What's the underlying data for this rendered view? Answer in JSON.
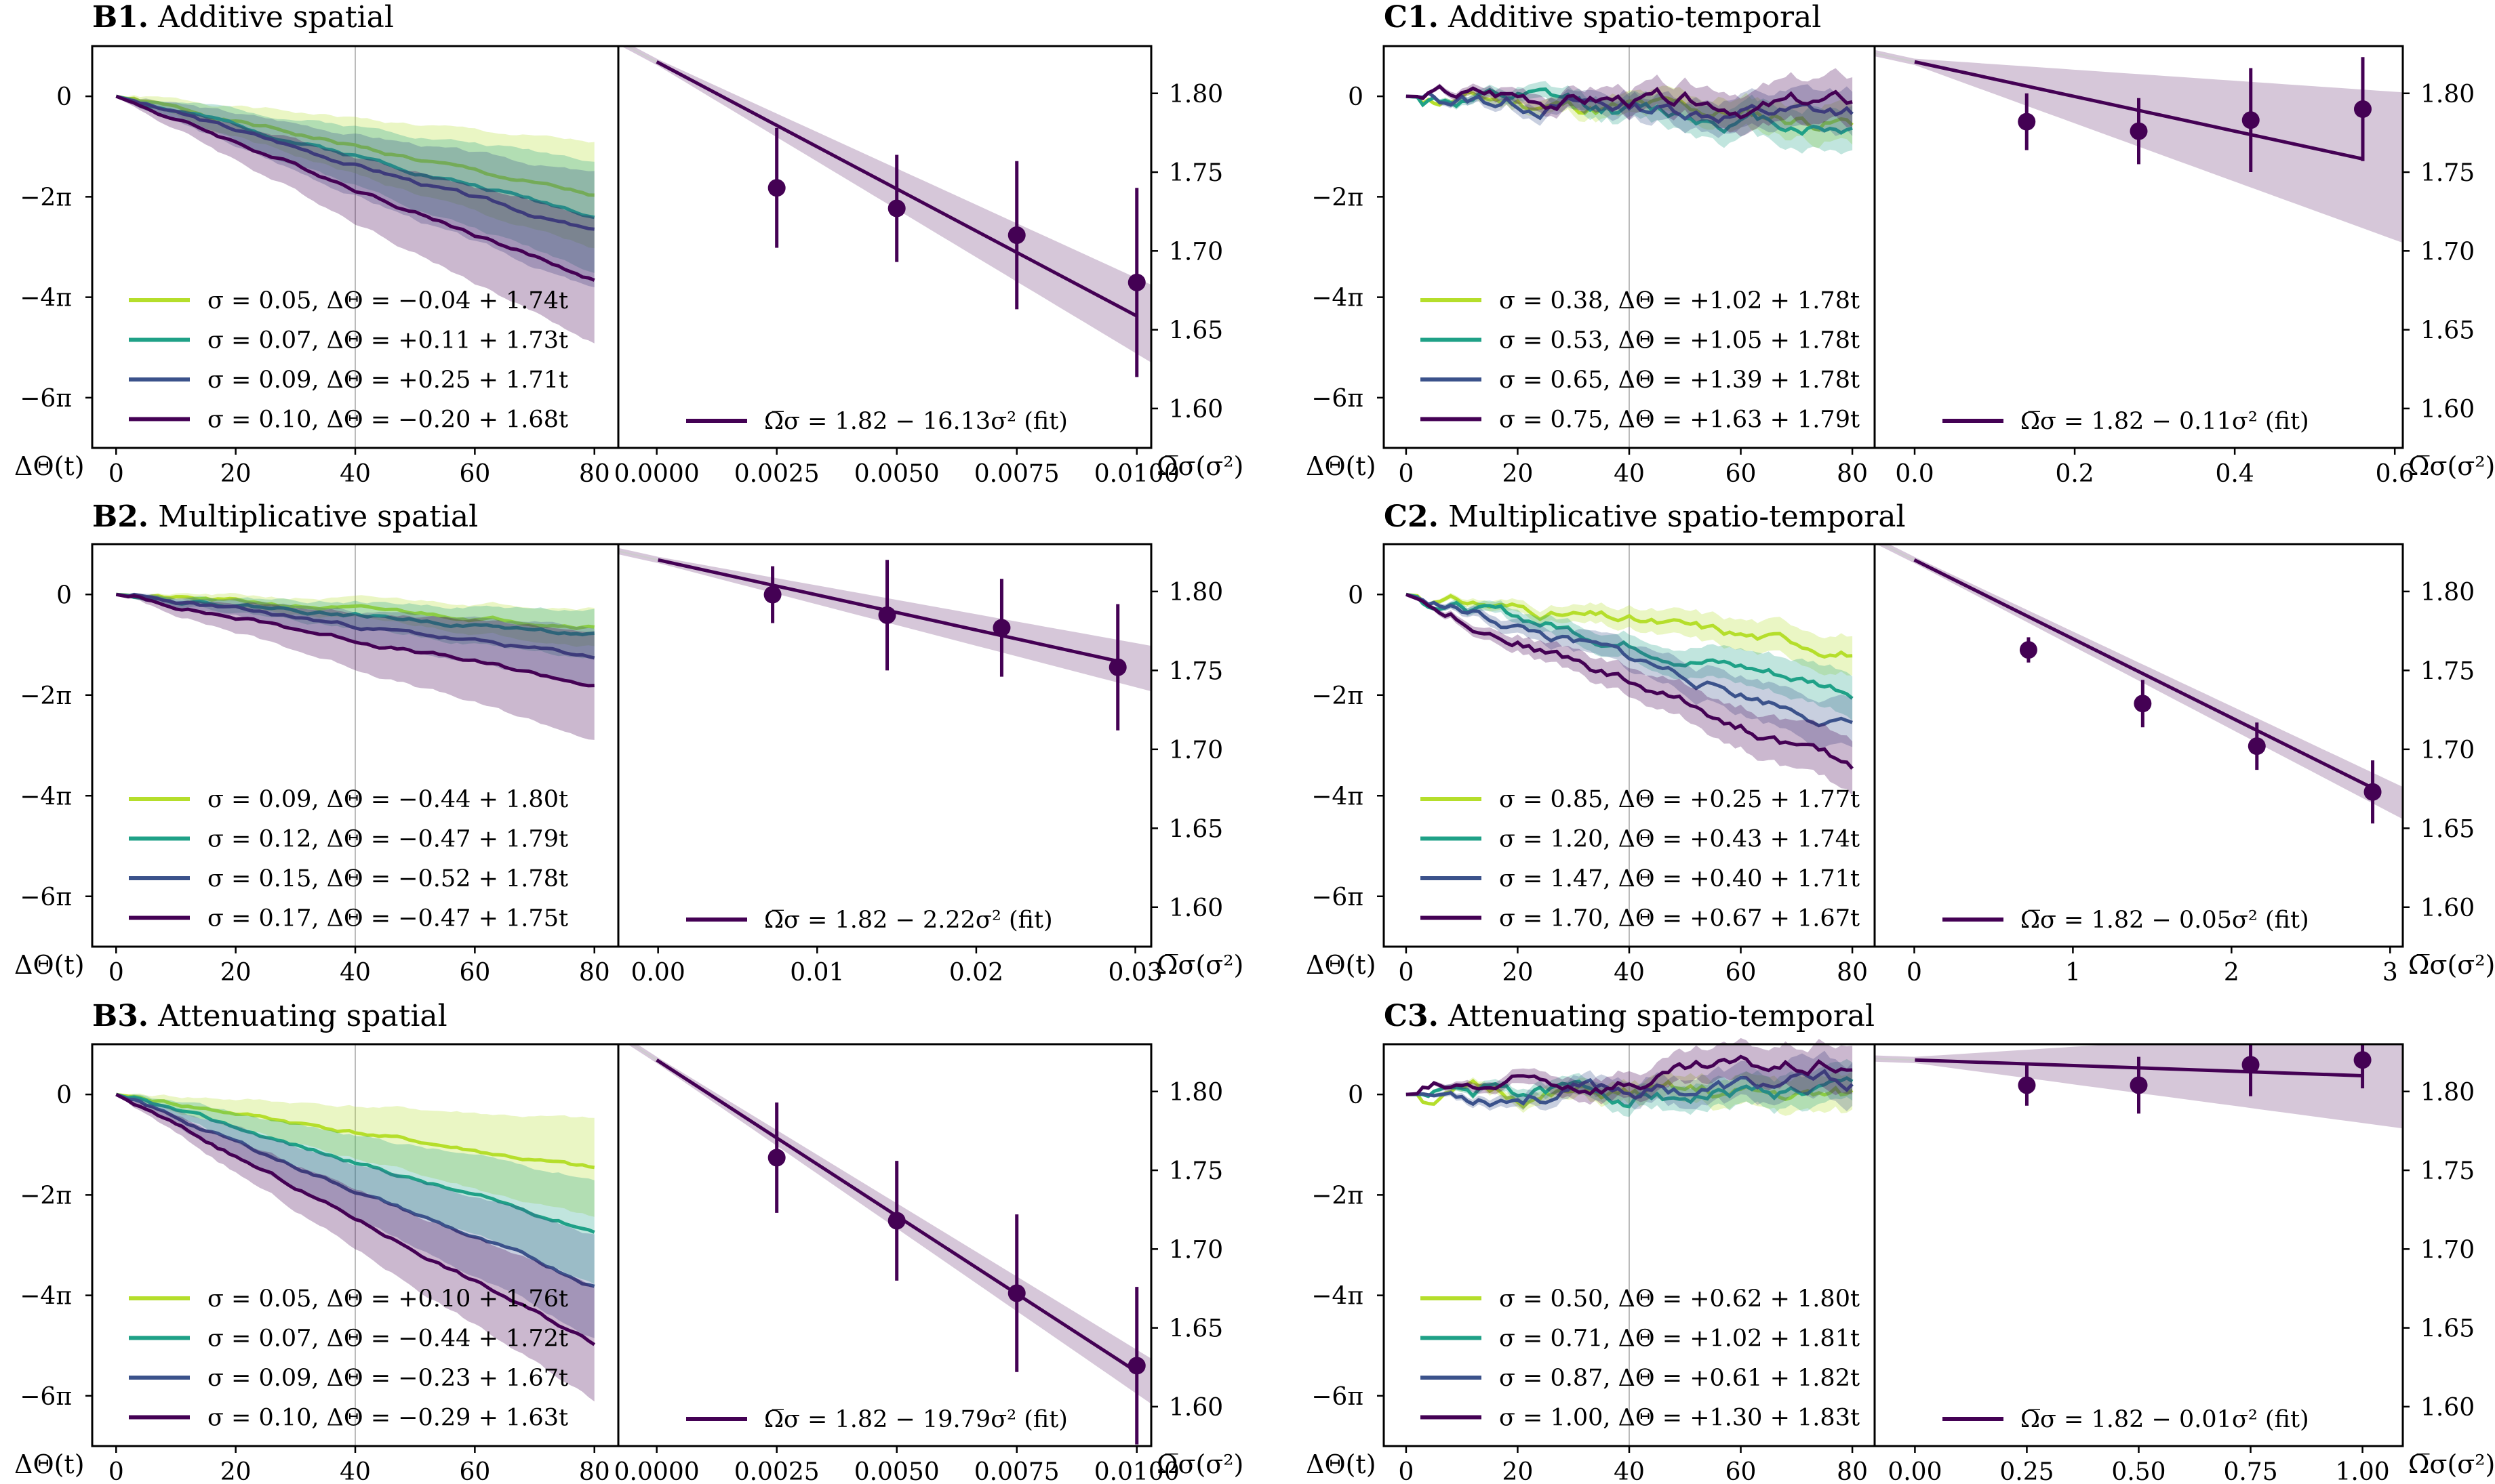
{
  "colors": {
    "viridis": [
      "#b5de2b",
      "#1fa187",
      "#3b528b",
      "#440154"
    ],
    "fit": "#440154",
    "vline": "#bbbbbb"
  },
  "labels": {
    "phase_axis": "ΔΘ(t)",
    "freq_axis": "Ω̅σ(σ²)"
  },
  "chart_data": [
    {
      "id": "B1",
      "title_bold": "B1.",
      "title_text": "Additive spatial",
      "left": {
        "type": "line",
        "xlim": [
          -4,
          84
        ],
        "ylim_pi": [
          -7,
          1
        ],
        "x_ticks": [
          0,
          20,
          40,
          60,
          80
        ],
        "x_tick_labels": [
          "0",
          "20",
          "40",
          "60",
          "80"
        ],
        "y_ticks_pi": [
          0,
          -2,
          -4,
          -6
        ],
        "y_tick_labels": [
          "0",
          "−2π",
          "−4π",
          "−6π"
        ],
        "vline_x": 40,
        "band_growth": 0.035,
        "series": [
          {
            "sigma": "0.05",
            "intercept": "−0.04",
            "slope": "1.74",
            "legend": "σ = 0.05, ΔΘ = −0.04 + 1.74t",
            "end_pi": -2.0,
            "band_pi": 0.9
          },
          {
            "sigma": "0.07",
            "intercept": "+0.11",
            "slope": "1.73",
            "legend": "σ = 0.07, ΔΘ = +0.11 + 1.73t",
            "end_pi": -2.35,
            "band_pi": 0.95
          },
          {
            "sigma": "0.09",
            "intercept": "+0.25",
            "slope": "1.71",
            "legend": "σ = 0.09, ΔΘ = +0.25 + 1.71t",
            "end_pi": -2.7,
            "band_pi": 1.0
          },
          {
            "sigma": "0.10",
            "intercept": "−0.20",
            "slope": "1.68",
            "legend": "σ = 0.10, ΔΘ = −0.20 + 1.68t",
            "end_pi": -3.65,
            "band_pi": 1.1
          }
        ]
      },
      "right": {
        "type": "scatter",
        "xlim": [
          -0.0008,
          0.0103
        ],
        "ylim": [
          1.575,
          1.83
        ],
        "x_ticks": [
          0,
          0.0025,
          0.005,
          0.0075,
          0.01
        ],
        "x_tick_labels": [
          "0.0000",
          "0.0025",
          "0.0050",
          "0.0075",
          "0.0100"
        ],
        "y_ticks": [
          1.6,
          1.65,
          1.7,
          1.75,
          1.8
        ],
        "y_tick_labels": [
          "1.60",
          "1.65",
          "1.70",
          "1.75",
          "1.80"
        ],
        "fit": {
          "a": 1.82,
          "b": -16.13,
          "label": "Ω̅σ = 1.82 − 16.13σ² (fit)",
          "band_end": 0.022
        },
        "points": [
          {
            "x": 0.0025,
            "y": 1.74,
            "err": 0.038
          },
          {
            "x": 0.005,
            "y": 1.727,
            "err": 0.034
          },
          {
            "x": 0.0075,
            "y": 1.71,
            "err": 0.047
          },
          {
            "x": 0.01,
            "y": 1.68,
            "err": 0.06
          }
        ]
      }
    },
    {
      "id": "C1",
      "title_bold": "C1.",
      "title_text": "Additive spatio-temporal",
      "left": {
        "type": "line",
        "xlim": [
          -4,
          84
        ],
        "ylim_pi": [
          -7,
          1
        ],
        "x_ticks": [
          0,
          20,
          40,
          60,
          80
        ],
        "x_tick_labels": [
          "0",
          "20",
          "40",
          "60",
          "80"
        ],
        "y_ticks_pi": [
          0,
          -2,
          -4,
          -6
        ],
        "y_tick_labels": [
          "0",
          "−2π",
          "−4π",
          "−6π"
        ],
        "vline_x": 40,
        "band_growth": 0.02,
        "wiggle": 0.12,
        "series": [
          {
            "sigma": "0.38",
            "intercept": "+1.02",
            "slope": "1.78",
            "legend": "σ = 0.38, ΔΘ = +1.02 + 1.78t",
            "end_pi": -0.5,
            "band_pi": 0.3
          },
          {
            "sigma": "0.53",
            "intercept": "+1.05",
            "slope": "1.78",
            "legend": "σ = 0.53, ΔΘ = +1.05 + 1.78t",
            "end_pi": -0.6,
            "band_pi": 0.35
          },
          {
            "sigma": "0.65",
            "intercept": "+1.39",
            "slope": "1.78",
            "legend": "σ = 0.65, ΔΘ = +1.39 + 1.78t",
            "end_pi": -0.4,
            "band_pi": 0.35
          },
          {
            "sigma": "0.75",
            "intercept": "+1.63",
            "slope": "1.79",
            "legend": "σ = 0.75, ΔΘ = +1.63 + 1.79t",
            "end_pi": -0.2,
            "band_pi": 0.4
          }
        ]
      },
      "right": {
        "type": "scatter",
        "xlim": [
          -0.05,
          0.61
        ],
        "ylim": [
          1.575,
          1.83
        ],
        "x_ticks": [
          0,
          0.2,
          0.4,
          0.6
        ],
        "x_tick_labels": [
          "0.0",
          "0.2",
          "0.4",
          "0.6"
        ],
        "y_ticks": [
          1.6,
          1.65,
          1.7,
          1.75,
          1.8
        ],
        "y_tick_labels": [
          "1.60",
          "1.65",
          "1.70",
          "1.75",
          "1.80"
        ],
        "fit": {
          "a": 1.82,
          "b": -0.11,
          "label": "Ω̅σ = 1.82 − 0.11σ² (fit)",
          "band_end": 0.045
        },
        "points": [
          {
            "x": 0.14,
            "y": 1.782,
            "err": 0.018
          },
          {
            "x": 0.28,
            "y": 1.776,
            "err": 0.021
          },
          {
            "x": 0.42,
            "y": 1.783,
            "err": 0.033
          },
          {
            "x": 0.56,
            "y": 1.79,
            "err": 0.033
          }
        ]
      }
    },
    {
      "id": "B2",
      "title_bold": "B2.",
      "title_text": "Multiplicative spatial",
      "left": {
        "type": "line",
        "xlim": [
          -4,
          84
        ],
        "ylim_pi": [
          -7,
          1
        ],
        "x_ticks": [
          0,
          20,
          40,
          60,
          80
        ],
        "x_tick_labels": [
          "0",
          "20",
          "40",
          "60",
          "80"
        ],
        "y_ticks_pi": [
          0,
          -2,
          -4,
          -6
        ],
        "y_tick_labels": [
          "0",
          "−2π",
          "−4π",
          "−6π"
        ],
        "vline_x": 40,
        "band_growth": 0.018,
        "series": [
          {
            "sigma": "0.09",
            "intercept": "−0.44",
            "slope": "1.80",
            "legend": "σ = 0.09, ΔΘ = −0.44 + 1.80t",
            "end_pi": -0.6,
            "band_pi": 0.3
          },
          {
            "sigma": "0.12",
            "intercept": "−0.47",
            "slope": "1.79",
            "legend": "σ = 0.12, ΔΘ = −0.47 + 1.79t",
            "end_pi": -0.8,
            "band_pi": 0.4
          },
          {
            "sigma": "0.15",
            "intercept": "−0.52",
            "slope": "1.78",
            "legend": "σ = 0.15, ΔΘ = −0.52 + 1.78t",
            "end_pi": -1.25,
            "band_pi": 0.5
          },
          {
            "sigma": "0.17",
            "intercept": "−0.47",
            "slope": "1.75",
            "legend": "σ = 0.17, ΔΘ = −0.47 + 1.75t",
            "end_pi": -1.8,
            "band_pi": 1.0
          }
        ]
      },
      "right": {
        "type": "scatter",
        "xlim": [
          -0.0025,
          0.031
        ],
        "ylim": [
          1.575,
          1.83
        ],
        "x_ticks": [
          0,
          0.01,
          0.02,
          0.03
        ],
        "x_tick_labels": [
          "0.00",
          "0.01",
          "0.02",
          "0.03"
        ],
        "y_ticks": [
          1.6,
          1.65,
          1.7,
          1.75,
          1.8
        ],
        "y_tick_labels": [
          "1.60",
          "1.65",
          "1.70",
          "1.75",
          "1.80"
        ],
        "fit": {
          "a": 1.82,
          "b": -2.22,
          "label": "Ω̅σ = 1.82 − 2.22σ² (fit)",
          "band_end": 0.012
        },
        "points": [
          {
            "x": 0.0072,
            "y": 1.798,
            "err": 0.018
          },
          {
            "x": 0.0144,
            "y": 1.785,
            "err": 0.035
          },
          {
            "x": 0.0216,
            "y": 1.777,
            "err": 0.031
          },
          {
            "x": 0.0289,
            "y": 1.752,
            "err": 0.04
          }
        ]
      }
    },
    {
      "id": "C2",
      "title_bold": "C2.",
      "title_text": "Multiplicative spatio-temporal",
      "left": {
        "type": "line",
        "xlim": [
          -4,
          84
        ],
        "ylim_pi": [
          -7,
          1
        ],
        "x_ticks": [
          0,
          20,
          40,
          60,
          80
        ],
        "x_tick_labels": [
          "0",
          "20",
          "40",
          "60",
          "80"
        ],
        "y_ticks_pi": [
          0,
          -2,
          -4,
          -6
        ],
        "y_tick_labels": [
          "0",
          "−2π",
          "−4π",
          "−6π"
        ],
        "vline_x": 40,
        "band_growth": 0.02,
        "wiggle": 0.08,
        "series": [
          {
            "sigma": "0.85",
            "intercept": "+0.25",
            "slope": "1.77",
            "legend": "σ = 0.85, ΔΘ = +0.25 + 1.77t",
            "end_pi": -1.1,
            "band_pi": 0.3
          },
          {
            "sigma": "1.20",
            "intercept": "+0.43",
            "slope": "1.74",
            "legend": "σ = 1.20, ΔΘ = +0.43 + 1.74t",
            "end_pi": -1.9,
            "band_pi": 0.35
          },
          {
            "sigma": "1.47",
            "intercept": "+0.40",
            "slope": "1.71",
            "legend": "σ = 1.47, ΔΘ = +0.40 + 1.71t",
            "end_pi": -2.6,
            "band_pi": 0.4
          },
          {
            "sigma": "1.70",
            "intercept": "+0.67",
            "slope": "1.67",
            "legend": "σ = 1.70, ΔΘ = +0.67 + 1.67t",
            "end_pi": -3.45,
            "band_pi": 0.45
          }
        ]
      },
      "right": {
        "type": "scatter",
        "xlim": [
          -0.25,
          3.08
        ],
        "ylim": [
          1.575,
          1.83
        ],
        "x_ticks": [
          0,
          1,
          2,
          3
        ],
        "x_tick_labels": [
          "0",
          "1",
          "2",
          "3"
        ],
        "y_ticks": [
          1.6,
          1.65,
          1.7,
          1.75,
          1.8
        ],
        "y_tick_labels": [
          "1.60",
          "1.65",
          "1.70",
          "1.75",
          "1.80"
        ],
        "fit": {
          "a": 1.82,
          "b": -0.05,
          "label": "Ω̅σ = 1.82 − 0.05σ² (fit)",
          "band_end": 0.008
        },
        "points": [
          {
            "x": 0.72,
            "y": 1.763,
            "err": 0.008
          },
          {
            "x": 1.44,
            "y": 1.729,
            "err": 0.015
          },
          {
            "x": 2.16,
            "y": 1.702,
            "err": 0.015
          },
          {
            "x": 2.89,
            "y": 1.673,
            "err": 0.02
          }
        ]
      }
    },
    {
      "id": "B3",
      "title_bold": "B3.",
      "title_text": "Attenuating spatial",
      "left": {
        "type": "line",
        "xlim": [
          -4,
          84
        ],
        "ylim_pi": [
          -7,
          1
        ],
        "x_ticks": [
          0,
          20,
          40,
          60,
          80
        ],
        "x_tick_labels": [
          "0",
          "20",
          "40",
          "60",
          "80"
        ],
        "y_ticks_pi": [
          0,
          -2,
          -4,
          -6
        ],
        "y_tick_labels": [
          "0",
          "−2π",
          "−4π",
          "−6π"
        ],
        "vline_x": 40,
        "band_growth": 0.03,
        "series": [
          {
            "sigma": "0.05",
            "intercept": "+0.10",
            "slope": "1.76",
            "legend": "σ = 0.05, ΔΘ = +0.10 + 1.76t",
            "end_pi": -1.5,
            "band_pi": 0.85
          },
          {
            "sigma": "0.07",
            "intercept": "−0.44",
            "slope": "1.72",
            "legend": "σ = 0.07, ΔΘ = −0.44 + 1.72t",
            "end_pi": -2.7,
            "band_pi": 0.9
          },
          {
            "sigma": "0.09",
            "intercept": "−0.23",
            "slope": "1.67",
            "legend": "σ = 0.09, ΔΘ = −0.23 + 1.67t",
            "end_pi": -3.8,
            "band_pi": 0.9
          },
          {
            "sigma": "0.10",
            "intercept": "−0.29",
            "slope": "1.63",
            "legend": "σ = 0.10, ΔΘ = −0.29 + 1.63t",
            "end_pi": -4.95,
            "band_pi": 1.0
          }
        ]
      },
      "right": {
        "type": "scatter",
        "xlim": [
          -0.0008,
          0.0103
        ],
        "ylim": [
          1.575,
          1.83
        ],
        "x_ticks": [
          0,
          0.0025,
          0.005,
          0.0075,
          0.01
        ],
        "x_tick_labels": [
          "0.0000",
          "0.0025",
          "0.0050",
          "0.0075",
          "0.0100"
        ],
        "y_ticks": [
          1.6,
          1.65,
          1.7,
          1.75,
          1.8
        ],
        "y_tick_labels": [
          "1.60",
          "1.65",
          "1.70",
          "1.75",
          "1.80"
        ],
        "fit": {
          "a": 1.82,
          "b": -19.79,
          "label": "Ω̅σ = 1.82 − 19.79σ² (fit)",
          "band_end": 0.012
        },
        "points": [
          {
            "x": 0.0025,
            "y": 1.758,
            "err": 0.035
          },
          {
            "x": 0.005,
            "y": 1.718,
            "err": 0.038
          },
          {
            "x": 0.0075,
            "y": 1.672,
            "err": 0.05
          },
          {
            "x": 0.01,
            "y": 1.626,
            "err": 0.05
          }
        ]
      }
    },
    {
      "id": "C3",
      "title_bold": "C3.",
      "title_text": "Attenuating spatio-temporal",
      "left": {
        "type": "line",
        "xlim": [
          -4,
          84
        ],
        "ylim_pi": [
          -7,
          1
        ],
        "x_ticks": [
          0,
          20,
          40,
          60,
          80
        ],
        "x_tick_labels": [
          "0",
          "20",
          "40",
          "60",
          "80"
        ],
        "y_ticks_pi": [
          0,
          -2,
          -4,
          -6
        ],
        "y_tick_labels": [
          "0",
          "−2π",
          "−4π",
          "−6π"
        ],
        "vline_x": 40,
        "band_growth": 0.018,
        "wiggle": 0.12,
        "series": [
          {
            "sigma": "0.50",
            "intercept": "+0.62",
            "slope": "1.80",
            "legend": "σ = 0.50, ΔΘ = +0.62 + 1.80t",
            "end_pi": -0.1,
            "band_pi": 0.3
          },
          {
            "sigma": "0.71",
            "intercept": "+1.02",
            "slope": "1.81",
            "legend": "σ = 0.71, ΔΘ = +1.02 + 1.81t",
            "end_pi": 0.05,
            "band_pi": 0.3
          },
          {
            "sigma": "0.87",
            "intercept": "+0.61",
            "slope": "1.82",
            "legend": "σ = 0.87, ΔΘ = +0.61 + 1.82t",
            "end_pi": 0.2,
            "band_pi": 0.35
          },
          {
            "sigma": "1.00",
            "intercept": "+1.30",
            "slope": "1.83",
            "legend": "σ = 1.00, ΔΘ = +1.30 + 1.83t",
            "end_pi": 0.6,
            "band_pi": 0.4
          }
        ]
      },
      "right": {
        "type": "scatter",
        "xlim": [
          -0.09,
          1.09
        ],
        "ylim": [
          1.575,
          1.83
        ],
        "x_ticks": [
          0,
          0.25,
          0.5,
          0.75,
          1.0
        ],
        "x_tick_labels": [
          "0.00",
          "0.25",
          "0.50",
          "0.75",
          "1.00"
        ],
        "y_ticks": [
          1.6,
          1.65,
          1.7,
          1.75,
          1.8
        ],
        "y_tick_labels": [
          "1.60",
          "1.65",
          "1.70",
          "1.75",
          "1.80"
        ],
        "fit": {
          "a": 1.82,
          "b": -0.01,
          "label": "Ω̅σ = 1.82 − 0.01σ² (fit)",
          "band_end": 0.028
        },
        "points": [
          {
            "x": 0.25,
            "y": 1.804,
            "err": 0.013
          },
          {
            "x": 0.5,
            "y": 1.804,
            "err": 0.018
          },
          {
            "x": 0.75,
            "y": 1.817,
            "err": 0.02
          },
          {
            "x": 1.0,
            "y": 1.82,
            "err": 0.018
          }
        ]
      }
    }
  ]
}
